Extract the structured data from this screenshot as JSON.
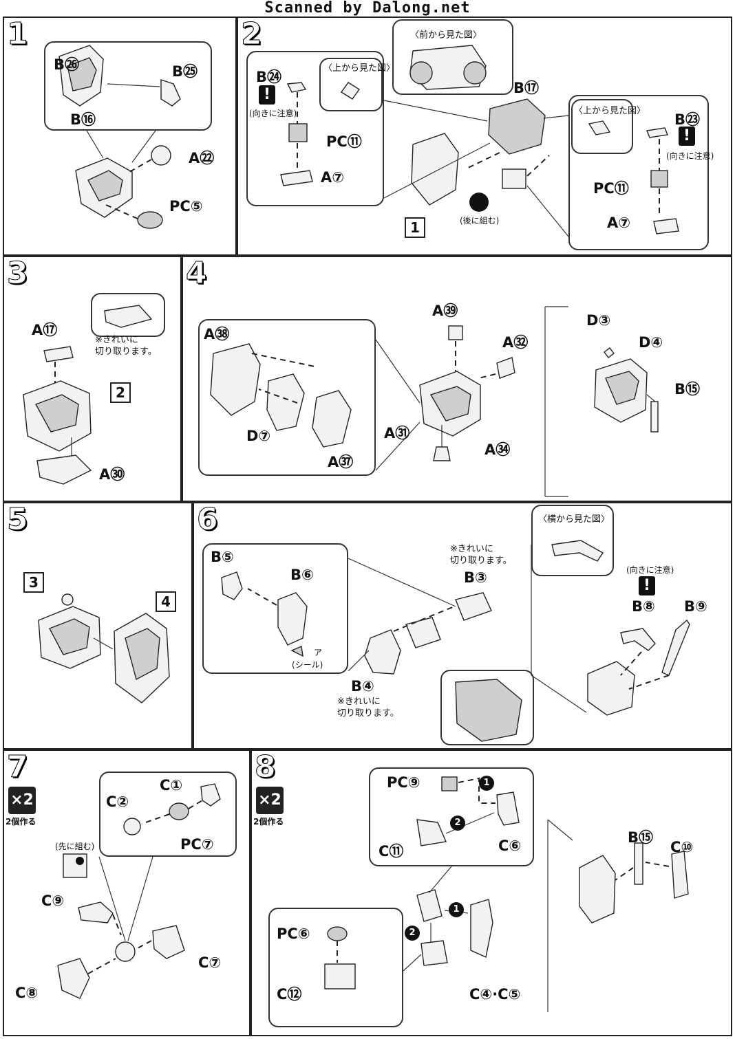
{
  "banner": "Scanned by Dalong.net",
  "steps": {
    "s1": {
      "num": "1",
      "labels": [
        "B㉖",
        "B㉕",
        "B⑯",
        "A㉒",
        "PC⑤"
      ]
    },
    "s2": {
      "num": "2",
      "view_front": "〈前から見た図〉",
      "view_top_a": "〈上から見た図〉",
      "view_top_b": "〈上から見た図〉",
      "warn_a": "(向きに注意)",
      "warn_b": "(向きに注意)",
      "later": "(後に組む)",
      "ref": "1",
      "labels": [
        "B㉔",
        "PC⑪",
        "A⑦",
        "B⑰",
        "B㉓",
        "PC⑪",
        "A⑦"
      ]
    },
    "s3": {
      "num": "3",
      "cut_note": "※きれいに\n切り取ります。",
      "ref": "2",
      "labels": [
        "A⑰",
        "A㉚"
      ]
    },
    "s4": {
      "num": "4",
      "labels": [
        "A㊳",
        "D⑦",
        "A㊲",
        "A㊴",
        "A㉜",
        "A㉛",
        "A㉞",
        "D③",
        "D④",
        "B⑮"
      ]
    },
    "s5": {
      "num": "5",
      "ref_a": "3",
      "ref_b": "4"
    },
    "s6": {
      "num": "6",
      "view_side": "〈横から見た図〉",
      "warn": "(向きに注意)",
      "sticker": "ア",
      "sticker_label": "(シール)",
      "cut_note_a": "※きれいに\n切り取ります。",
      "cut_note_b": "※きれいに\n切り取ります。",
      "labels": [
        "B⑤",
        "B⑥",
        "B③",
        "B④",
        "B⑧",
        "B⑨"
      ]
    },
    "s7": {
      "num": "7",
      "multiplier": "×2",
      "multiplier_sub": "2個作る",
      "first": "(先に組む)",
      "labels": [
        "C①",
        "C②",
        "PC⑦",
        "C⑨",
        "C⑦",
        "C⑧"
      ]
    },
    "s8": {
      "num": "8",
      "multiplier": "×2",
      "multiplier_sub": "2個作る",
      "labels": [
        "PC⑨",
        "C⑥",
        "C⑪",
        "PC⑥",
        "C⑫",
        "C④·C⑤",
        "B⑮",
        "C⑩"
      ]
    }
  }
}
